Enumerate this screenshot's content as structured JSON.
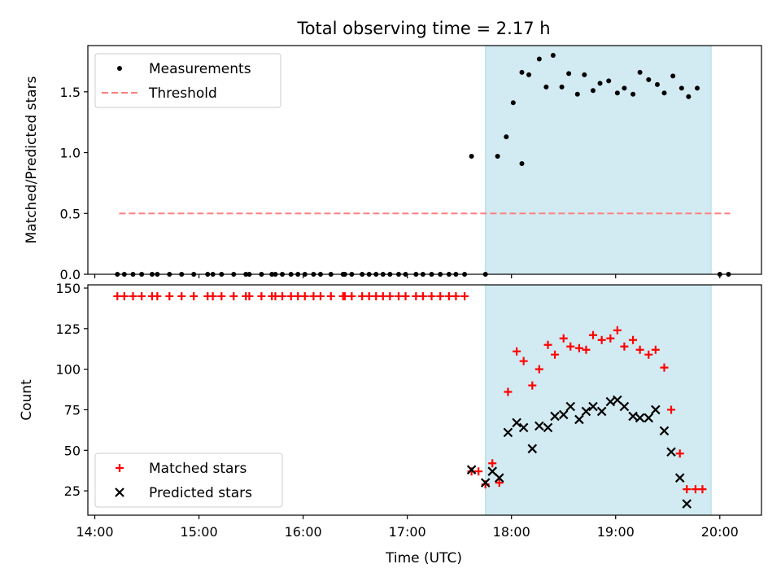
{
  "chart_data": {
    "type": "scatter",
    "title": "Total observing time = 2.17 h",
    "xlabel": "Time (UTC)",
    "xlim": [
      "13:56",
      "20:24"
    ],
    "x_ticks": [
      "14:00",
      "15:00",
      "16:00",
      "17:00",
      "18:00",
      "19:00",
      "20:00"
    ],
    "observing_window": [
      "17:45",
      "19:55"
    ],
    "window_color": "#add8e6",
    "panels": [
      {
        "ylabel": "Matched/Predicted stars",
        "ylim": [
          0,
          1.88
        ],
        "y_ticks": [
          "0.0",
          "0.5",
          "1.0",
          "1.5"
        ],
        "legend_position": "upper left",
        "series": [
          {
            "name": "Measurements",
            "marker": "dot",
            "color": "#000000",
            "points": [
              [
                "14:13",
                0
              ],
              [
                "14:17",
                0
              ],
              [
                "14:22",
                0
              ],
              [
                "14:27",
                0
              ],
              [
                "14:33",
                0
              ],
              [
                "14:36",
                0
              ],
              [
                "14:43",
                0
              ],
              [
                "14:50",
                0
              ],
              [
                "14:57",
                0
              ],
              [
                "15:05",
                0
              ],
              [
                "15:08",
                0
              ],
              [
                "15:13",
                0
              ],
              [
                "15:20",
                0
              ],
              [
                "15:27",
                0
              ],
              [
                "15:29",
                0
              ],
              [
                "15:36",
                0
              ],
              [
                "15:42",
                0
              ],
              [
                "15:44",
                0
              ],
              [
                "15:48",
                0
              ],
              [
                "15:53",
                0
              ],
              [
                "15:57",
                0
              ],
              [
                "16:01",
                0
              ],
              [
                "16:06",
                0
              ],
              [
                "16:10",
                0
              ],
              [
                "16:16",
                0
              ],
              [
                "16:23",
                0
              ],
              [
                "16:24",
                0
              ],
              [
                "16:28",
                0
              ],
              [
                "16:34",
                0
              ],
              [
                "16:38",
                0
              ],
              [
                "16:42",
                0
              ],
              [
                "16:46",
                0
              ],
              [
                "16:50",
                0
              ],
              [
                "16:55",
                0
              ],
              [
                "16:59",
                0
              ],
              [
                "17:05",
                0
              ],
              [
                "17:09",
                0
              ],
              [
                "17:14",
                0
              ],
              [
                "17:19",
                0
              ],
              [
                "17:24",
                0
              ],
              [
                "17:28",
                0
              ],
              [
                "17:33",
                0
              ],
              [
                "17:37",
                0.97
              ],
              [
                "17:45",
                0
              ],
              [
                "17:52",
                0.97
              ],
              [
                "17:57",
                1.13
              ],
              [
                "18:06",
                0.91
              ],
              [
                "18:01",
                1.41
              ],
              [
                "18:06",
                1.66
              ],
              [
                "18:10",
                1.64
              ],
              [
                "18:16",
                1.77
              ],
              [
                "18:20",
                1.54
              ],
              [
                "18:24",
                1.8
              ],
              [
                "18:29",
                1.54
              ],
              [
                "18:33",
                1.65
              ],
              [
                "18:38",
                1.48
              ],
              [
                "18:42",
                1.64
              ],
              [
                "18:47",
                1.51
              ],
              [
                "18:51",
                1.57
              ],
              [
                "18:56",
                1.59
              ],
              [
                "19:01",
                1.49
              ],
              [
                "19:05",
                1.53
              ],
              [
                "19:10",
                1.48
              ],
              [
                "19:14",
                1.66
              ],
              [
                "19:19",
                1.6
              ],
              [
                "19:24",
                1.56
              ],
              [
                "19:28",
                1.49
              ],
              [
                "19:33",
                1.63
              ],
              [
                "19:38",
                1.53
              ],
              [
                "19:42",
                1.46
              ],
              [
                "19:47",
                1.53
              ],
              [
                "20:00",
                0
              ],
              [
                "20:05",
                0
              ]
            ]
          },
          {
            "name": "Threshold",
            "marker": "dashed-line",
            "color": "#ff7f7f",
            "points": [
              [
                "14:14",
                0.5
              ],
              [
                "20:06",
                0.5
              ]
            ]
          }
        ]
      },
      {
        "ylabel": "Count",
        "ylim": [
          10,
          152
        ],
        "y_ticks": [
          "25",
          "50",
          "75",
          "100",
          "125",
          "150"
        ],
        "legend_position": "lower left",
        "series": [
          {
            "name": "Matched stars",
            "marker": "plus",
            "color": "#ff0000",
            "points": [
              [
                "14:13",
                145
              ],
              [
                "14:17",
                145
              ],
              [
                "14:22",
                145
              ],
              [
                "14:27",
                145
              ],
              [
                "14:33",
                145
              ],
              [
                "14:36",
                145
              ],
              [
                "14:43",
                145
              ],
              [
                "14:50",
                145
              ],
              [
                "14:57",
                145
              ],
              [
                "15:05",
                145
              ],
              [
                "15:08",
                145
              ],
              [
                "15:13",
                145
              ],
              [
                "15:20",
                145
              ],
              [
                "15:27",
                145
              ],
              [
                "15:29",
                145
              ],
              [
                "15:36",
                145
              ],
              [
                "15:42",
                145
              ],
              [
                "15:44",
                145
              ],
              [
                "15:48",
                145
              ],
              [
                "15:53",
                145
              ],
              [
                "15:57",
                145
              ],
              [
                "16:01",
                145
              ],
              [
                "16:06",
                145
              ],
              [
                "16:10",
                145
              ],
              [
                "16:16",
                145
              ],
              [
                "16:23",
                145
              ],
              [
                "16:24",
                145
              ],
              [
                "16:28",
                145
              ],
              [
                "16:34",
                145
              ],
              [
                "16:38",
                145
              ],
              [
                "16:42",
                145
              ],
              [
                "16:46",
                145
              ],
              [
                "16:50",
                145
              ],
              [
                "16:55",
                145
              ],
              [
                "16:59",
                145
              ],
              [
                "17:05",
                145
              ],
              [
                "17:09",
                145
              ],
              [
                "17:14",
                145
              ],
              [
                "17:19",
                145
              ],
              [
                "17:24",
                145
              ],
              [
                "17:28",
                145
              ],
              [
                "17:33",
                145
              ],
              [
                "17:37",
                37
              ],
              [
                "17:41",
                37
              ],
              [
                "17:45",
                29
              ],
              [
                "17:49",
                42
              ],
              [
                "17:53",
                30
              ],
              [
                "17:58",
                86
              ],
              [
                "18:03",
                111
              ],
              [
                "18:07",
                105
              ],
              [
                "18:12",
                90
              ],
              [
                "18:16",
                100
              ],
              [
                "18:21",
                115
              ],
              [
                "18:25",
                109
              ],
              [
                "18:30",
                119
              ],
              [
                "18:34",
                114
              ],
              [
                "18:39",
                113
              ],
              [
                "18:43",
                112
              ],
              [
                "18:47",
                121
              ],
              [
                "18:52",
                118
              ],
              [
                "18:57",
                119
              ],
              [
                "19:01",
                124
              ],
              [
                "19:05",
                114
              ],
              [
                "19:10",
                118
              ],
              [
                "19:14",
                112
              ],
              [
                "19:19",
                109
              ],
              [
                "19:23",
                112
              ],
              [
                "19:28",
                101
              ],
              [
                "19:32",
                75
              ],
              [
                "19:37",
                48
              ],
              [
                "19:41",
                26
              ],
              [
                "19:46",
                26
              ],
              [
                "19:50",
                26
              ]
            ]
          },
          {
            "name": "Predicted stars",
            "marker": "x",
            "color": "#000000",
            "points": [
              [
                "17:37",
                38
              ],
              [
                "17:45",
                30
              ],
              [
                "17:49",
                37
              ],
              [
                "17:53",
                33
              ],
              [
                "17:58",
                61
              ],
              [
                "18:03",
                67
              ],
              [
                "18:07",
                64
              ],
              [
                "18:12",
                51
              ],
              [
                "18:16",
                65
              ],
              [
                "18:21",
                64
              ],
              [
                "18:25",
                71
              ],
              [
                "18:30",
                72
              ],
              [
                "18:34",
                77
              ],
              [
                "18:39",
                69
              ],
              [
                "18:43",
                74
              ],
              [
                "18:47",
                77
              ],
              [
                "18:52",
                74
              ],
              [
                "18:57",
                80
              ],
              [
                "19:01",
                81
              ],
              [
                "19:05",
                77
              ],
              [
                "19:10",
                71
              ],
              [
                "19:14",
                70
              ],
              [
                "19:19",
                70
              ],
              [
                "19:23",
                75
              ],
              [
                "19:28",
                62
              ],
              [
                "19:32",
                49
              ],
              [
                "19:37",
                33
              ],
              [
                "19:41",
                17
              ]
            ]
          }
        ]
      }
    ]
  }
}
